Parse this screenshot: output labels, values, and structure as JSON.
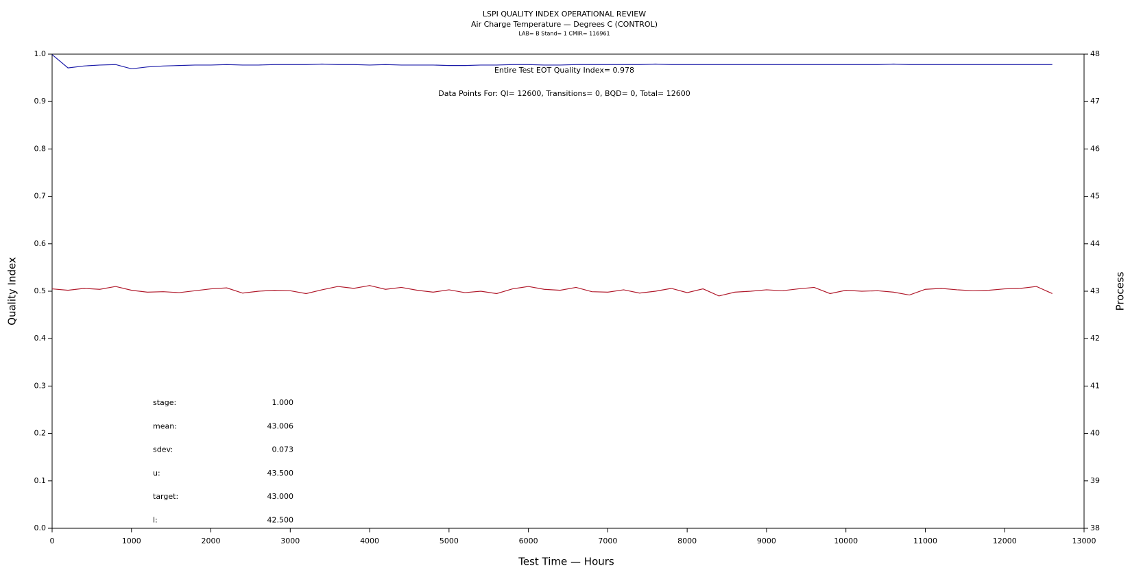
{
  "chart_data": {
    "type": "line",
    "title": "LSPI QUALITY INDEX OPERATIONAL REVIEW",
    "subtitle": "Air Charge Temperature — Degrees C (CONTROL)",
    "caption": "LAB= B Stand= 1 CMIR= 116961",
    "annotations": [
      "Entire Test EOT Quality Index=   0.978",
      "Data Points For: QI= 12600, Transitions=     0, BQD=     0, Total= 12600"
    ],
    "stats": [
      {
        "label": "stage:",
        "value": "1.000"
      },
      {
        "label": "mean:",
        "value": "43.006"
      },
      {
        "label": "sdev:",
        "value": "0.073"
      },
      {
        "label": "u:",
        "value": "43.500"
      },
      {
        "label": "target:",
        "value": "43.000"
      },
      {
        "label": "l:",
        "value": "42.500"
      }
    ],
    "xlabel": "Test Time — Hours",
    "ylabel": "Quality Index",
    "y2label": "Process",
    "xlim": [
      0,
      13000
    ],
    "xticks": [
      0,
      1000,
      2000,
      3000,
      4000,
      5000,
      6000,
      7000,
      8000,
      9000,
      10000,
      11000,
      12000,
      13000
    ],
    "ylim": [
      0,
      1
    ],
    "yticks": [
      {
        "value": 0,
        "label": "0.0"
      },
      0.1,
      0.2,
      0.3,
      0.4,
      0.5,
      0.6,
      0.7,
      0.8,
      0.9,
      {
        "value": 1,
        "label": "1.0"
      }
    ],
    "y2lim": [
      38,
      48
    ],
    "y2ticks": [
      38,
      39,
      40,
      41,
      42,
      43,
      44,
      45,
      46,
      47,
      48
    ],
    "x": [
      0,
      200,
      400,
      600,
      800,
      1000,
      1200,
      1400,
      1600,
      1800,
      2000,
      2200,
      2400,
      2600,
      2800,
      3000,
      3200,
      3400,
      3600,
      3800,
      4000,
      4200,
      4400,
      4600,
      4800,
      5000,
      5200,
      5400,
      5600,
      5800,
      6000,
      6200,
      6400,
      6600,
      6800,
      7000,
      7200,
      7400,
      7600,
      7800,
      8000,
      8200,
      8400,
      8600,
      8800,
      9000,
      9200,
      9400,
      9600,
      9800,
      10000,
      10200,
      10400,
      10600,
      10800,
      11000,
      11200,
      11400,
      11600,
      11800,
      12000,
      12200,
      12400,
      12600
    ],
    "series": [
      {
        "name": "Quality Index",
        "color": "#1a1aa8",
        "values": [
          0.999,
          0.971,
          0.975,
          0.977,
          0.978,
          0.969,
          0.973,
          0.975,
          0.976,
          0.977,
          0.977,
          0.978,
          0.977,
          0.977,
          0.978,
          0.978,
          0.978,
          0.979,
          0.978,
          0.978,
          0.977,
          0.978,
          0.977,
          0.977,
          0.977,
          0.976,
          0.976,
          0.977,
          0.977,
          0.978,
          0.978,
          0.977,
          0.977,
          0.978,
          0.978,
          0.978,
          0.978,
          0.978,
          0.979,
          0.978,
          0.978,
          0.978,
          0.978,
          0.978,
          0.978,
          0.978,
          0.978,
          0.978,
          0.978,
          0.978,
          0.978,
          0.978,
          0.978,
          0.979,
          0.978,
          0.978,
          0.978,
          0.978,
          0.978,
          0.978,
          0.978,
          0.978,
          0.978,
          0.978
        ]
      },
      {
        "name": "Process",
        "color": "#b0182a",
        "axis": "y2",
        "values": [
          43.05,
          43.02,
          43.06,
          43.04,
          43.1,
          43.02,
          42.98,
          42.99,
          42.97,
          43.01,
          43.05,
          43.07,
          42.96,
          43.0,
          43.02,
          43.01,
          42.95,
          43.03,
          43.1,
          43.06,
          43.12,
          43.04,
          43.08,
          43.02,
          42.98,
          43.03,
          42.97,
          43.0,
          42.95,
          43.05,
          43.1,
          43.04,
          43.02,
          43.08,
          42.99,
          42.98,
          43.03,
          42.96,
          43.0,
          43.06,
          42.97,
          43.05,
          42.9,
          42.98,
          43.0,
          43.03,
          43.01,
          43.05,
          43.08,
          42.95,
          43.02,
          43.0,
          43.01,
          42.98,
          42.92,
          43.04,
          43.06,
          43.03,
          43.01,
          43.02,
          43.05,
          43.06,
          43.1,
          42.95
        ]
      }
    ]
  }
}
